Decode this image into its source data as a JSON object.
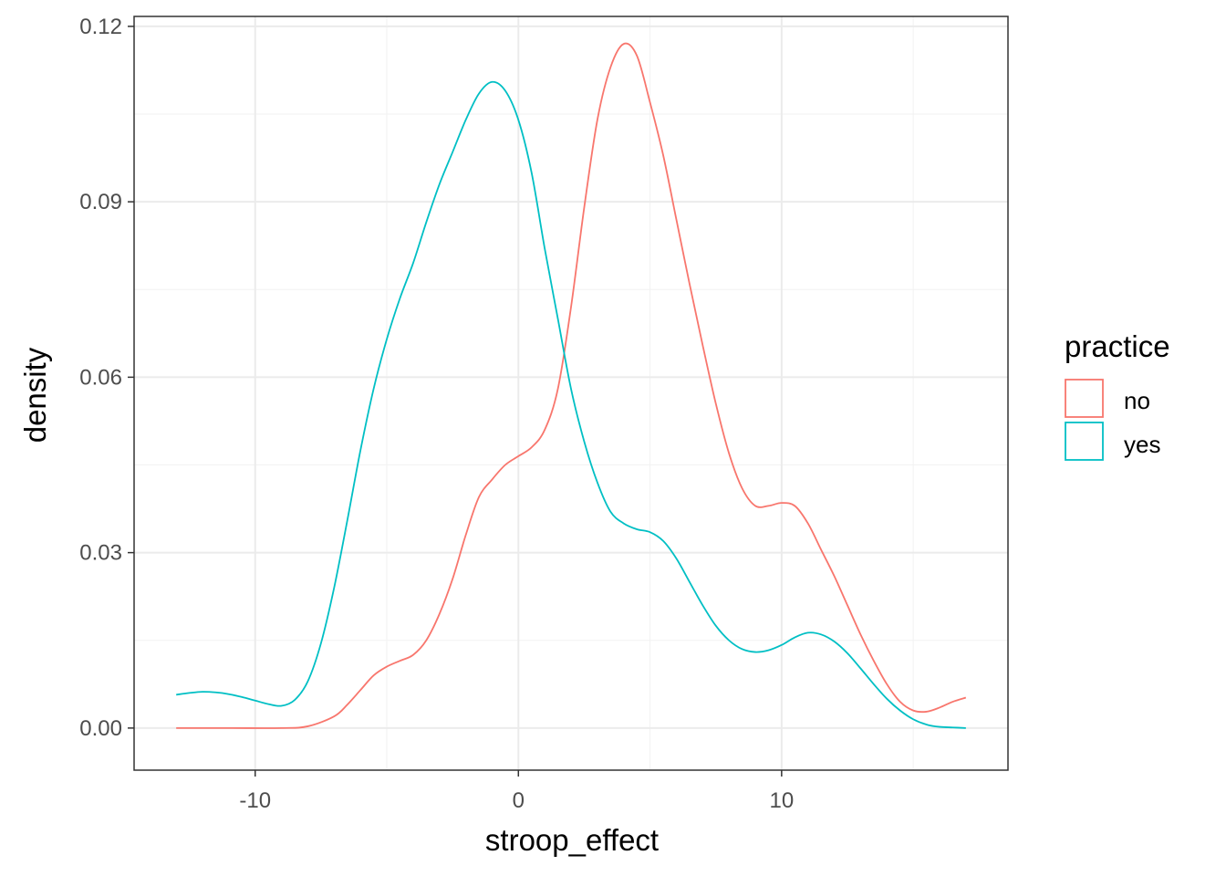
{
  "chart_data": {
    "type": "line",
    "title": "",
    "xlabel": "stroop_effect",
    "ylabel": "density",
    "xlim": [
      -14.6,
      18.6
    ],
    "ylim": [
      -0.0072,
      0.1217
    ],
    "x_ticks": [
      -10,
      0,
      10
    ],
    "x_tick_labels": [
      "-10",
      "0",
      "10"
    ],
    "y_ticks": [
      0.0,
      0.03,
      0.06,
      0.09,
      0.12
    ],
    "y_tick_labels": [
      "0.00",
      "0.03",
      "0.06",
      "0.09",
      "0.12"
    ],
    "grid": true,
    "legend": {
      "title": "practice",
      "placement": "right",
      "entries": [
        "no",
        "yes"
      ]
    },
    "series": [
      {
        "name": "no",
        "color": "#F8766D",
        "x": [
          -13,
          -11,
          -9,
          -8,
          -7,
          -6.5,
          -6,
          -5.5,
          -5,
          -4.5,
          -4,
          -3.5,
          -3,
          -2.5,
          -2,
          -1.5,
          -1,
          -0.5,
          0,
          0.5,
          1,
          1.5,
          2,
          2.5,
          3,
          3.5,
          4,
          4.5,
          5,
          5.5,
          6,
          6.5,
          7,
          7.5,
          8,
          8.5,
          9,
          9.5,
          10,
          10.5,
          11,
          11.5,
          12,
          12.5,
          13,
          13.5,
          14,
          14.5,
          15,
          15.5,
          16,
          16.5,
          17
        ],
        "y": [
          0.0,
          0.0,
          0.0,
          0.0003,
          0.002,
          0.004,
          0.0065,
          0.009,
          0.0105,
          0.0115,
          0.0125,
          0.015,
          0.0195,
          0.0255,
          0.033,
          0.0395,
          0.0425,
          0.045,
          0.0465,
          0.048,
          0.051,
          0.058,
          0.072,
          0.089,
          0.104,
          0.113,
          0.117,
          0.115,
          0.107,
          0.098,
          0.087,
          0.076,
          0.0655,
          0.0555,
          0.047,
          0.041,
          0.038,
          0.038,
          0.0385,
          0.038,
          0.035,
          0.0305,
          0.026,
          0.021,
          0.016,
          0.0115,
          0.0075,
          0.0045,
          0.003,
          0.0028,
          0.0035,
          0.0045,
          0.0052
        ]
      },
      {
        "name": "yes",
        "color": "#00BFC4",
        "x": [
          -13,
          -12.5,
          -12,
          -11.5,
          -11,
          -10.5,
          -10,
          -9.5,
          -9,
          -8.5,
          -8,
          -7.5,
          -7,
          -6.5,
          -6,
          -5.5,
          -5,
          -4.5,
          -4,
          -3.5,
          -3,
          -2.5,
          -2,
          -1.5,
          -1,
          -0.5,
          0,
          0.5,
          1,
          1.5,
          2,
          2.5,
          3,
          3.5,
          4,
          4.5,
          5,
          5.5,
          6,
          6.5,
          7,
          7.5,
          8,
          8.5,
          9,
          9.5,
          10,
          10.5,
          11,
          11.5,
          12,
          12.5,
          13,
          13.5,
          14,
          14.5,
          15,
          15.5,
          16,
          16.5,
          17
        ],
        "y": [
          0.0057,
          0.006,
          0.0062,
          0.0061,
          0.0058,
          0.0053,
          0.0047,
          0.0041,
          0.0038,
          0.0048,
          0.008,
          0.0145,
          0.024,
          0.0355,
          0.0475,
          0.058,
          0.0665,
          0.0735,
          0.0795,
          0.0865,
          0.093,
          0.0985,
          0.104,
          0.1085,
          0.1105,
          0.109,
          0.104,
          0.095,
          0.082,
          0.07,
          0.058,
          0.049,
          0.042,
          0.037,
          0.035,
          0.034,
          0.0335,
          0.032,
          0.029,
          0.025,
          0.021,
          0.0175,
          0.015,
          0.0135,
          0.013,
          0.0133,
          0.0142,
          0.0155,
          0.0163,
          0.016,
          0.0148,
          0.0128,
          0.0102,
          0.0075,
          0.005,
          0.003,
          0.0015,
          0.0006,
          0.0002,
          0.0001,
          0.0
        ]
      }
    ]
  }
}
